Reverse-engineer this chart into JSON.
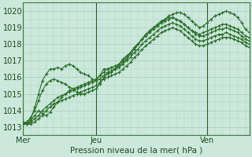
{
  "title": "Pression niveau de la mer( hPa )",
  "xlim": [
    0,
    59
  ],
  "ylim": [
    1012.5,
    1020.5
  ],
  "yticks": [
    1013,
    1014,
    1015,
    1016,
    1017,
    1018,
    1019,
    1020
  ],
  "xtick_positions": [
    0,
    19,
    48
  ],
  "xtick_labels": [
    "Mer",
    "Jeu",
    "Ven"
  ],
  "vline_positions": [
    0,
    19,
    48
  ],
  "bg_color": "#cce8dc",
  "grid_color": "#aacfc0",
  "line_color": "#2a6e2a",
  "marker": "+",
  "series": [
    [
      1013.2,
      1013.3,
      1013.5,
      1014.2,
      1015.0,
      1015.8,
      1016.2,
      1016.5,
      1016.5,
      1016.6,
      1016.5,
      1016.7,
      1016.8,
      1016.7,
      1016.5,
      1016.3,
      1016.2,
      1016.1,
      1015.9,
      1015.8,
      1016.1,
      1016.5,
      1016.5,
      1016.6,
      1016.5,
      1016.8,
      1017.1,
      1017.3,
      1017.5,
      1017.8,
      1018.0,
      1018.3,
      1018.6,
      1018.8,
      1019.0,
      1019.1,
      1019.3,
      1019.5,
      1019.7,
      1019.8,
      1019.9,
      1019.9,
      1019.8,
      1019.6,
      1019.4,
      1019.2,
      1019.0,
      1019.1,
      1019.3,
      1019.5,
      1019.7,
      1019.8,
      1019.9,
      1020.0,
      1019.9,
      1019.8,
      1019.6,
      1019.3,
      1018.9,
      1018.7
    ],
    [
      1013.2,
      1013.3,
      1013.6,
      1014.0,
      1014.6,
      1015.2,
      1015.6,
      1015.8,
      1015.9,
      1015.8,
      1015.7,
      1015.6,
      1015.4,
      1015.3,
      1015.1,
      1015.0,
      1015.0,
      1015.1,
      1015.2,
      1015.3,
      1015.6,
      1016.0,
      1016.2,
      1016.3,
      1016.5,
      1016.7,
      1016.9,
      1017.1,
      1017.4,
      1017.7,
      1018.0,
      1018.3,
      1018.6,
      1018.8,
      1019.0,
      1019.2,
      1019.4,
      1019.5,
      1019.6,
      1019.6,
      1019.5,
      1019.4,
      1019.2,
      1019.0,
      1018.8,
      1018.7,
      1018.6,
      1018.7,
      1018.8,
      1018.9,
      1019.0,
      1019.1,
      1019.2,
      1019.2,
      1019.1,
      1019.0,
      1018.9,
      1018.7,
      1018.5,
      1018.4
    ],
    [
      1013.2,
      1013.2,
      1013.4,
      1013.7,
      1014.0,
      1013.8,
      1013.7,
      1013.9,
      1014.2,
      1014.5,
      1014.8,
      1015.0,
      1015.2,
      1015.3,
      1015.4,
      1015.5,
      1015.6,
      1015.7,
      1015.8,
      1015.9,
      1016.1,
      1016.3,
      1016.5,
      1016.6,
      1016.7,
      1016.8,
      1017.0,
      1017.2,
      1017.5,
      1017.8,
      1018.0,
      1018.3,
      1018.5,
      1018.7,
      1018.9,
      1019.1,
      1019.3,
      1019.4,
      1019.5,
      1019.6,
      1019.5,
      1019.4,
      1019.2,
      1019.0,
      1018.8,
      1018.6,
      1018.5,
      1018.5,
      1018.6,
      1018.7,
      1018.8,
      1018.9,
      1018.9,
      1019.0,
      1018.9,
      1018.8,
      1018.7,
      1018.5,
      1018.3,
      1018.2
    ],
    [
      1013.2,
      1013.2,
      1013.3,
      1013.5,
      1013.7,
      1014.0,
      1014.2,
      1014.4,
      1014.6,
      1014.8,
      1014.9,
      1015.0,
      1015.1,
      1015.2,
      1015.3,
      1015.4,
      1015.5,
      1015.6,
      1015.7,
      1015.8,
      1015.9,
      1016.1,
      1016.3,
      1016.4,
      1016.5,
      1016.6,
      1016.8,
      1017.0,
      1017.2,
      1017.5,
      1017.7,
      1018.0,
      1018.2,
      1018.4,
      1018.6,
      1018.8,
      1019.0,
      1019.1,
      1019.2,
      1019.3,
      1019.2,
      1019.1,
      1018.9,
      1018.7,
      1018.5,
      1018.3,
      1018.2,
      1018.2,
      1018.3,
      1018.4,
      1018.5,
      1018.6,
      1018.6,
      1018.7,
      1018.6,
      1018.5,
      1018.4,
      1018.3,
      1018.1,
      1018.0
    ],
    [
      1013.3,
      1013.2,
      1013.2,
      1013.3,
      1013.5,
      1013.7,
      1014.0,
      1014.2,
      1014.4,
      1014.5,
      1014.6,
      1014.7,
      1014.8,
      1014.9,
      1015.0,
      1015.1,
      1015.2,
      1015.3,
      1015.4,
      1015.5,
      1015.7,
      1015.9,
      1016.0,
      1016.1,
      1016.2,
      1016.3,
      1016.5,
      1016.7,
      1016.9,
      1017.2,
      1017.4,
      1017.7,
      1017.9,
      1018.1,
      1018.3,
      1018.5,
      1018.7,
      1018.8,
      1018.9,
      1019.0,
      1018.9,
      1018.8,
      1018.6,
      1018.4,
      1018.2,
      1018.0,
      1017.9,
      1017.9,
      1018.0,
      1018.1,
      1018.2,
      1018.3,
      1018.4,
      1018.4,
      1018.4,
      1018.3,
      1018.2,
      1018.1,
      1017.9,
      1017.8
    ]
  ]
}
